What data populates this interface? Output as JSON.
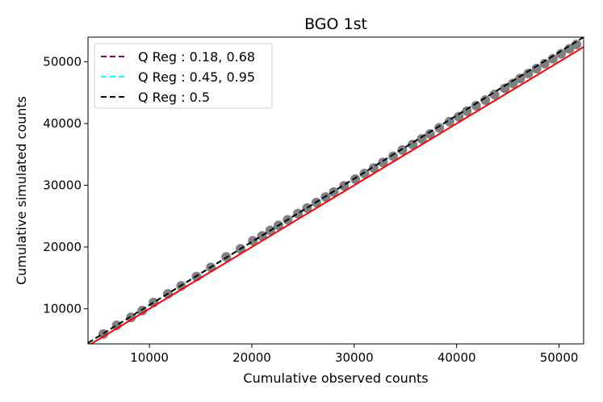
{
  "chart_data": {
    "type": "scatter",
    "title": "BGO 1st",
    "xlabel": "Cumulative observed counts",
    "ylabel": "Cumulative simulated counts",
    "xlim": [
      4000,
      52400
    ],
    "ylim": [
      4300,
      54000
    ],
    "xticks": [
      10000,
      20000,
      30000,
      40000,
      50000
    ],
    "yticks": [
      10000,
      20000,
      30000,
      40000,
      50000
    ],
    "grid": false,
    "legend_position": "upper-left",
    "points": {
      "color": "#808080",
      "x": [
        5500,
        6800,
        8200,
        9300,
        10400,
        11800,
        13100,
        14600,
        16000,
        17500,
        18900,
        20100,
        21000,
        21800,
        22600,
        23500,
        24500,
        25400,
        26300,
        27200,
        28000,
        29000,
        30100,
        31000,
        31900,
        32800,
        33800,
        34700,
        35700,
        36600,
        37400,
        38300,
        39300,
        40200,
        41000,
        41900,
        42800,
        43700,
        44700,
        45500,
        46200,
        47000,
        47800,
        48600,
        49400,
        50200,
        51000,
        51700
      ],
      "y": [
        5900,
        7300,
        8600,
        9700,
        11000,
        12400,
        13700,
        15200,
        16700,
        18400,
        19700,
        21000,
        21800,
        22700,
        23500,
        24400,
        25400,
        26300,
        27200,
        28100,
        28900,
        29900,
        31000,
        31900,
        32800,
        33700,
        34700,
        35700,
        36600,
        37500,
        38300,
        39300,
        40300,
        41100,
        42000,
        42900,
        43800,
        44700,
        45700,
        46500,
        47300,
        48100,
        48900,
        49700,
        50500,
        51300,
        52100,
        52800
      ]
    },
    "series": [
      {
        "name": "Q Reg : 0.18, 0.68",
        "color": "#800080",
        "style": "dashed",
        "x": [
          4000,
          52400
        ],
        "y": [
          4450,
          54000
        ]
      },
      {
        "name": "Q Reg : 0.45, 0.95",
        "color": "#00ffff",
        "style": "dashed",
        "x": [
          4000,
          52400
        ],
        "y": [
          4450,
          54000
        ]
      },
      {
        "name": "Q Reg : 0.5",
        "color": "#000000",
        "style": "dashed",
        "x": [
          4000,
          52400
        ],
        "y": [
          4450,
          54000
        ]
      }
    ],
    "reference_line": {
      "color": "#ff0000",
      "style": "solid",
      "x": [
        4000,
        52400
      ],
      "y": [
        4000,
        52400
      ]
    }
  }
}
